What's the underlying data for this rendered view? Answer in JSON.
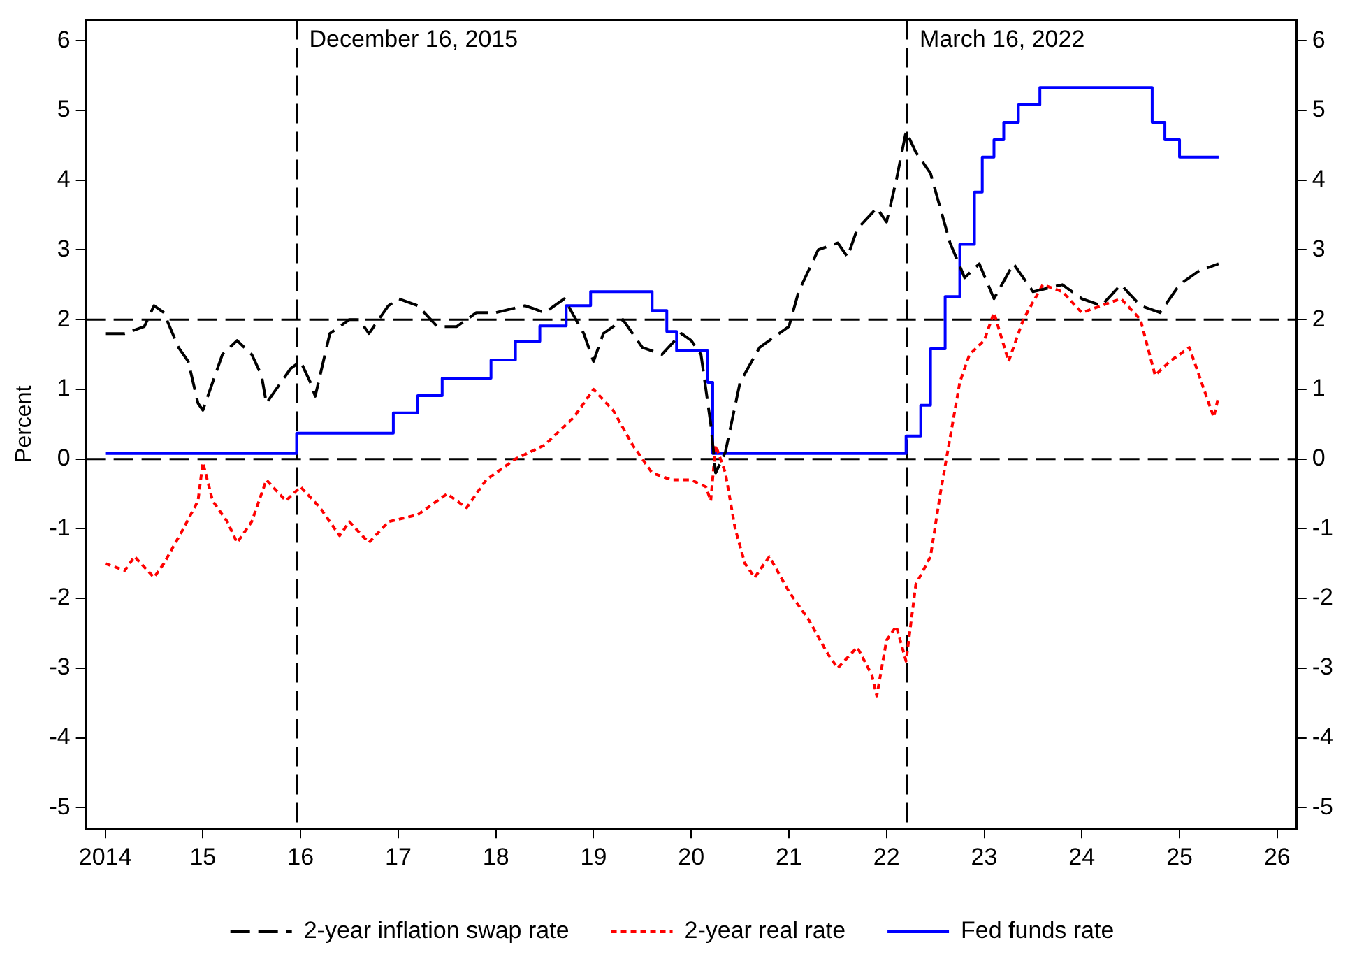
{
  "chart_data": {
    "type": "line",
    "ylabel": "Percent",
    "xlim": [
      2013.8,
      2026.2
    ],
    "xticks": [
      2014,
      {
        "value": 2015,
        "label": "15"
      },
      {
        "value": 2016,
        "label": "16"
      },
      {
        "value": 2017,
        "label": "17"
      },
      {
        "value": 2018,
        "label": "18"
      },
      {
        "value": 2019,
        "label": "19"
      },
      {
        "value": 2020,
        "label": "20"
      },
      {
        "value": 2021,
        "label": "21"
      },
      {
        "value": 2022,
        "label": "22"
      },
      {
        "value": 2023,
        "label": "23"
      },
      {
        "value": 2024,
        "label": "24"
      },
      {
        "value": 2025,
        "label": "25"
      },
      {
        "value": 2026,
        "label": "26"
      }
    ],
    "ylim": [
      -5.3,
      6.3
    ],
    "yticks": [
      -5,
      -4,
      -3,
      -2,
      -1,
      0,
      1,
      2,
      3,
      4,
      5,
      6
    ],
    "y2lim": [
      -5.3,
      6.3
    ],
    "y2ticks": [
      -5,
      -4,
      -3,
      -2,
      -1,
      0,
      1,
      2,
      3,
      4,
      5,
      6
    ],
    "grid": false,
    "legend": "bottom",
    "marker": "none",
    "ref_lines": [
      {
        "axis": "y",
        "value": 0,
        "line_style": "dashed",
        "color": "#000000"
      },
      {
        "axis": "y",
        "value": 2,
        "line_style": "dashed",
        "color": "#000000"
      },
      {
        "axis": "x",
        "value": 2015.96,
        "label": "December 16, 2015",
        "line_style": "dashed",
        "color": "#000000"
      },
      {
        "axis": "x",
        "value": 2022.21,
        "label": "March 16, 2022",
        "line_style": "dashed",
        "color": "#000000"
      }
    ],
    "series": [
      {
        "name": "2-year inflation swap rate",
        "color": "#000000",
        "line_style": "dashed",
        "x": [
          2014.0,
          2014.2,
          2014.4,
          2014.5,
          2014.6,
          2014.75,
          2014.85,
          2014.95,
          2015.0,
          2015.1,
          2015.2,
          2015.35,
          2015.5,
          2015.6,
          2015.65,
          2015.75,
          2015.9,
          2016.0,
          2016.1,
          2016.15,
          2016.3,
          2016.5,
          2016.6,
          2016.7,
          2016.9,
          2017.0,
          2017.2,
          2017.4,
          2017.6,
          2017.8,
          2018.0,
          2018.3,
          2018.5,
          2018.7,
          2018.9,
          2019.0,
          2019.1,
          2019.3,
          2019.5,
          2019.7,
          2019.9,
          2020.0,
          2020.1,
          2020.2,
          2020.25,
          2020.35,
          2020.5,
          2020.7,
          2020.9,
          2021.0,
          2021.1,
          2021.3,
          2021.5,
          2021.6,
          2021.7,
          2021.9,
          2022.0,
          2022.1,
          2022.2,
          2022.3,
          2022.45,
          2022.55,
          2022.65,
          2022.8,
          2022.95,
          2023.1,
          2023.3,
          2023.5,
          2023.8,
          2024.0,
          2024.2,
          2024.4,
          2024.6,
          2024.8,
          2025.0,
          2025.2,
          2025.4
        ],
        "values": [
          1.8,
          1.8,
          1.9,
          2.2,
          2.1,
          1.6,
          1.4,
          0.8,
          0.7,
          1.1,
          1.5,
          1.7,
          1.5,
          1.2,
          0.8,
          1.0,
          1.3,
          1.4,
          1.1,
          0.9,
          1.8,
          2.0,
          2.0,
          1.8,
          2.2,
          2.3,
          2.2,
          1.9,
          1.9,
          2.1,
          2.1,
          2.2,
          2.1,
          2.3,
          1.8,
          1.4,
          1.8,
          2.0,
          1.6,
          1.5,
          1.8,
          1.7,
          1.5,
          0.5,
          -0.2,
          0.1,
          1.1,
          1.6,
          1.8,
          1.9,
          2.4,
          3.0,
          3.1,
          2.9,
          3.3,
          3.6,
          3.4,
          4.0,
          4.7,
          4.4,
          4.1,
          3.6,
          3.1,
          2.6,
          2.8,
          2.3,
          2.8,
          2.4,
          2.5,
          2.3,
          2.2,
          2.5,
          2.2,
          2.1,
          2.5,
          2.7,
          2.8
        ]
      },
      {
        "name": "2-year real rate",
        "color": "#ff0000",
        "line_style": "dotted",
        "x": [
          2014.0,
          2014.2,
          2014.3,
          2014.5,
          2014.6,
          2014.8,
          2014.95,
          2015.0,
          2015.1,
          2015.25,
          2015.35,
          2015.5,
          2015.65,
          2015.85,
          2016.0,
          2016.2,
          2016.4,
          2016.5,
          2016.7,
          2016.9,
          2017.2,
          2017.5,
          2017.7,
          2017.9,
          2018.2,
          2018.5,
          2018.8,
          2019.0,
          2019.2,
          2019.4,
          2019.6,
          2019.8,
          2020.0,
          2020.15,
          2020.2,
          2020.25,
          2020.35,
          2020.45,
          2020.55,
          2020.65,
          2020.8,
          2021.0,
          2021.2,
          2021.4,
          2021.5,
          2021.7,
          2021.85,
          2021.9,
          2022.0,
          2022.1,
          2022.2,
          2022.3,
          2022.45,
          2022.55,
          2022.65,
          2022.75,
          2022.85,
          2023.0,
          2023.1,
          2023.25,
          2023.4,
          2023.6,
          2023.8,
          2024.0,
          2024.2,
          2024.4,
          2024.6,
          2024.75,
          2024.9,
          2025.1,
          2025.25,
          2025.35,
          2025.4
        ],
        "values": [
          -1.5,
          -1.6,
          -1.4,
          -1.7,
          -1.5,
          -1.0,
          -0.6,
          -0.05,
          -0.6,
          -0.9,
          -1.2,
          -0.9,
          -0.3,
          -0.6,
          -0.4,
          -0.7,
          -1.1,
          -0.9,
          -1.2,
          -0.9,
          -0.8,
          -0.5,
          -0.7,
          -0.3,
          0.0,
          0.2,
          0.6,
          1.0,
          0.7,
          0.2,
          -0.2,
          -0.3,
          -0.3,
          -0.4,
          -0.6,
          0.2,
          -0.2,
          -1.0,
          -1.5,
          -1.7,
          -1.4,
          -1.9,
          -2.3,
          -2.8,
          -3.0,
          -2.7,
          -3.1,
          -3.4,
          -2.6,
          -2.4,
          -2.9,
          -1.8,
          -1.4,
          -0.5,
          0.3,
          1.1,
          1.5,
          1.7,
          2.1,
          1.4,
          2.0,
          2.5,
          2.4,
          2.1,
          2.2,
          2.3,
          2.0,
          1.2,
          1.4,
          1.6,
          1.0,
          0.6,
          0.9
        ]
      },
      {
        "name": "Fed funds rate",
        "color": "#0000ff",
        "line_style": "solid",
        "type": "step",
        "x": [
          2014.0,
          2015.96,
          2016.95,
          2017.2,
          2017.45,
          2017.95,
          2018.2,
          2018.45,
          2018.72,
          2018.97,
          2019.6,
          2019.75,
          2019.85,
          2020.17,
          2020.22,
          2022.2,
          2022.35,
          2022.45,
          2022.6,
          2022.75,
          2022.9,
          2022.98,
          2023.1,
          2023.2,
          2023.35,
          2023.57,
          2024.72,
          2024.85,
          2025.0,
          2025.4
        ],
        "values": [
          0.08,
          0.37,
          0.66,
          0.91,
          1.16,
          1.42,
          1.69,
          1.91,
          2.2,
          2.4,
          2.13,
          1.83,
          1.55,
          1.1,
          0.08,
          0.33,
          0.77,
          1.58,
          2.33,
          3.08,
          3.83,
          4.33,
          4.58,
          4.83,
          5.08,
          5.33,
          4.83,
          4.58,
          4.33,
          4.33
        ]
      }
    ]
  }
}
